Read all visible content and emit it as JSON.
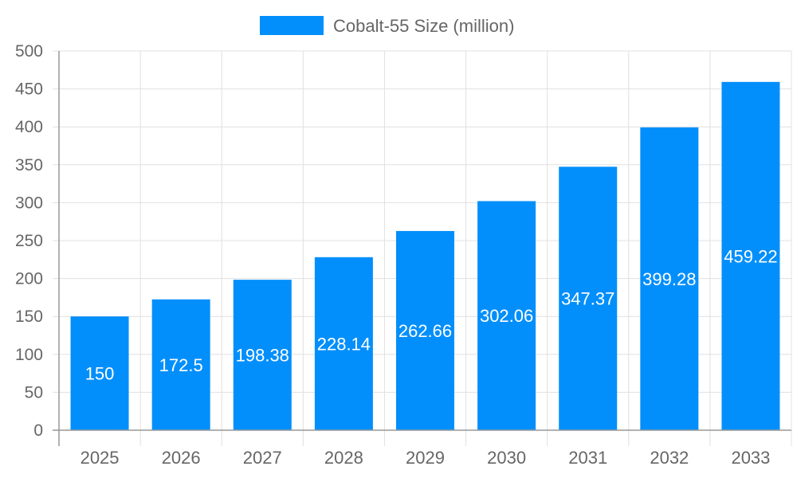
{
  "chart_data": {
    "type": "bar",
    "categories": [
      "2025",
      "2026",
      "2027",
      "2028",
      "2029",
      "2030",
      "2031",
      "2032",
      "2033"
    ],
    "series": [
      {
        "name": "Cobalt-55 Size (million)",
        "values": [
          150,
          172.5,
          198.38,
          228.14,
          262.66,
          302.06,
          347.37,
          399.28,
          459.22
        ]
      }
    ],
    "data_labels": [
      "150",
      "172.5",
      "198.38",
      "228.14",
      "262.66",
      "302.06",
      "347.37",
      "399.28",
      "459.22"
    ],
    "ylim": [
      0,
      500
    ],
    "yticks": [
      0,
      50,
      100,
      150,
      200,
      250,
      300,
      350,
      400,
      450,
      500
    ],
    "grid": true,
    "legend": "top",
    "colors": {
      "bar": "#038ffb",
      "grid": "#e0e0e0",
      "axis": "#999999",
      "text": "#666666"
    }
  }
}
